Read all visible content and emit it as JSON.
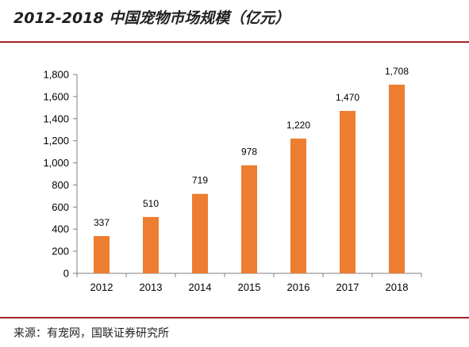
{
  "header": {
    "title": "2012-2018 中国宠物市场规模（亿元）"
  },
  "footer": {
    "source": "来源：有宠网，国联证券研究所"
  },
  "colors": {
    "bar": "#ed7d31",
    "accent_rule": "#a6222d",
    "axis": "#808080"
  },
  "chart_data": {
    "type": "bar",
    "title": "2012-2018 中国宠物市场规模（亿元）",
    "categories": [
      "2012",
      "2013",
      "2014",
      "2015",
      "2016",
      "2017",
      "2018"
    ],
    "values": [
      337,
      510,
      719,
      978,
      1220,
      1470,
      1708
    ],
    "value_labels": [
      "337",
      "510",
      "719",
      "978",
      "1,220",
      "1,470",
      "1,708"
    ],
    "ylim": [
      0,
      1800
    ],
    "yticks": [
      0,
      200,
      400,
      600,
      800,
      1000,
      1200,
      1400,
      1600,
      1800
    ],
    "ytick_labels": [
      "0",
      "200",
      "400",
      "600",
      "800",
      "1,000",
      "1,200",
      "1,400",
      "1,600",
      "1,800"
    ],
    "grid": false,
    "legend": "none"
  }
}
